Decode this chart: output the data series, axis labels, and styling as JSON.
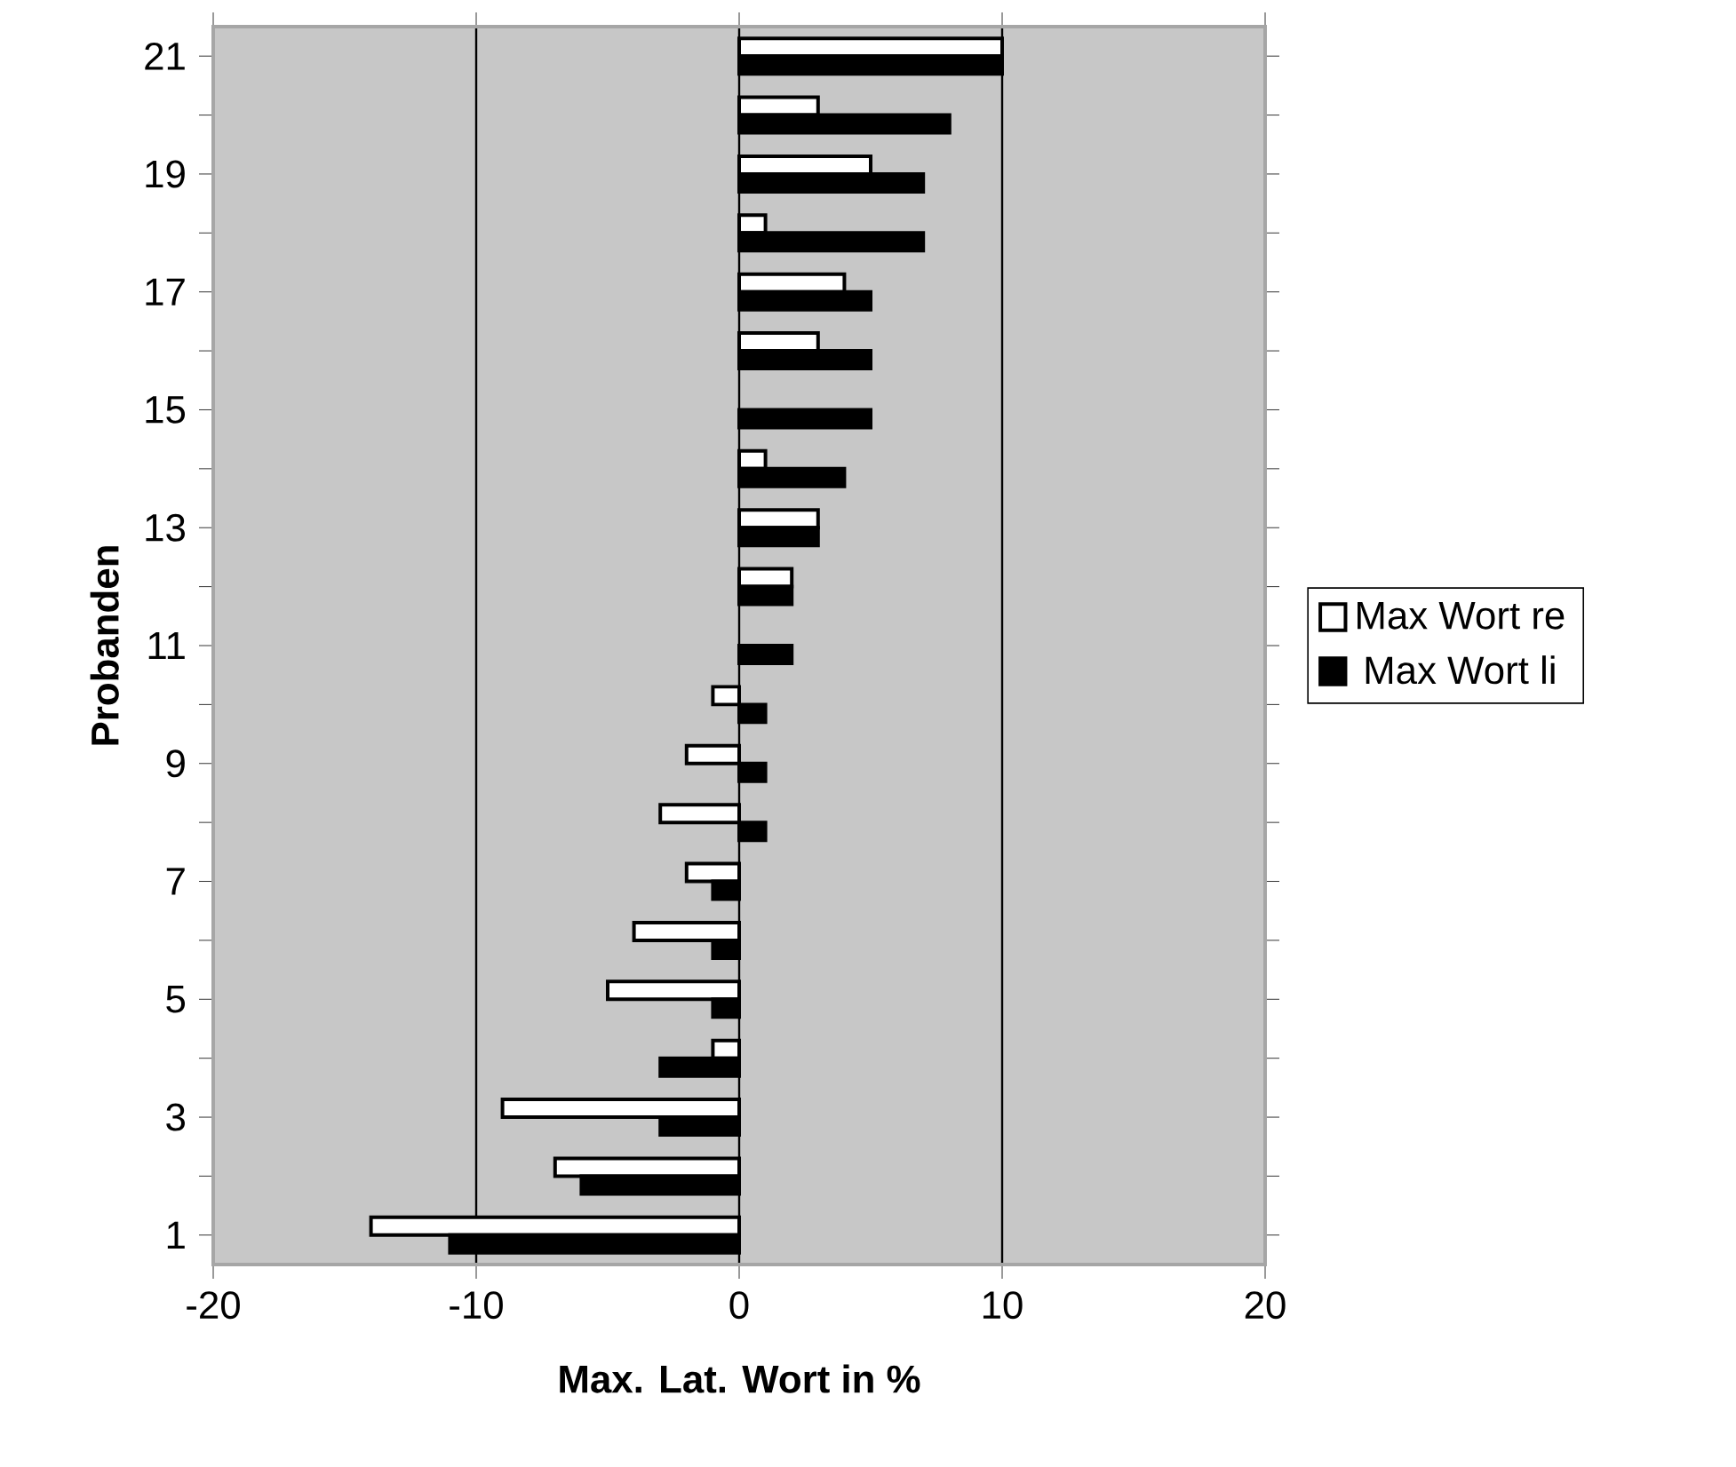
{
  "chart_data": {
    "type": "bar",
    "orientation": "horizontal",
    "xlabel": "Max. Lat. Wort in %",
    "ylabel": "Probanden",
    "categories": [
      "21",
      null,
      "19",
      null,
      "17",
      null,
      "15",
      null,
      "13",
      null,
      "11",
      null,
      "9",
      null,
      "7",
      null,
      "5",
      null,
      "3",
      null,
      "1"
    ],
    "series": [
      {
        "name": "Max Wort re",
        "color": "#ffffff",
        "values": [
          10,
          3,
          5,
          1,
          4,
          3,
          0,
          1,
          3,
          2,
          0,
          -1,
          -2,
          -3,
          -2,
          -4,
          -5,
          -1,
          -9,
          -7,
          -14
        ]
      },
      {
        "name": "Max Wort li",
        "color": "#000000",
        "values": [
          10,
          8,
          7,
          7,
          5,
          5,
          5,
          4,
          3,
          2,
          2,
          1,
          1,
          1,
          -1,
          -1,
          -1,
          -3,
          -3,
          -6,
          -11
        ]
      }
    ],
    "xlim": [
      -20,
      20
    ],
    "xticks": [
      -20,
      -10,
      0,
      10,
      20
    ],
    "grid": "x",
    "legend": "right"
  }
}
